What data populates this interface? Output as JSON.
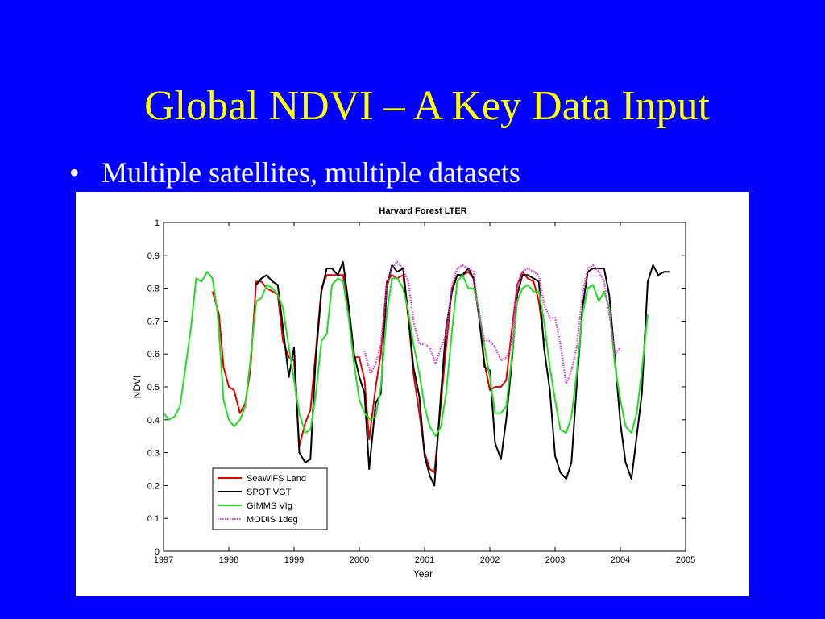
{
  "slide": {
    "title": "Global NDVI – A Key Data Input",
    "bullet": "Multiple satellites, multiple datasets"
  },
  "chart_data": {
    "type": "line",
    "title": "Harvard Forest LTER",
    "xlabel": "Year",
    "ylabel": "NDVI",
    "xlim": [
      1997,
      2005
    ],
    "ylim": [
      0,
      1
    ],
    "xticks": [
      1997,
      1998,
      1999,
      2000,
      2001,
      2002,
      2003,
      2004,
      2005
    ],
    "yticks": [
      0,
      0.1,
      0.2,
      0.3,
      0.4,
      0.5,
      0.6,
      0.7,
      0.8,
      0.9,
      1
    ],
    "grid": false,
    "legend_position": "bottom-left",
    "series": [
      {
        "name": "SeaWiFS Land",
        "color": "#e00000",
        "style": "solid",
        "x": [
          1997.75,
          1997.85,
          1997.92,
          1998.0,
          1998.08,
          1998.17,
          1998.25,
          1998.33,
          1998.42,
          1998.5,
          1998.58,
          1998.67,
          1998.75,
          1998.83,
          1998.92,
          1999.0,
          1999.08,
          1999.17,
          1999.25,
          1999.33,
          1999.42,
          1999.5,
          1999.58,
          1999.67,
          1999.75,
          1999.83,
          1999.92,
          2000.0,
          2000.08,
          2000.15,
          2000.25,
          2000.33,
          2000.42,
          2000.5,
          2000.58,
          2000.67,
          2000.75,
          2000.83,
          2000.92,
          2001.0,
          2001.08,
          2001.15,
          2001.25,
          2001.33,
          2001.42,
          2001.5,
          2001.58,
          2001.67,
          2001.75,
          2001.83,
          2001.92,
          2002.0,
          2002.08,
          2002.17,
          2002.25,
          2002.33,
          2002.42,
          2002.5,
          2002.58,
          2002.67,
          2002.75,
          2002.83
        ],
        "y": [
          0.79,
          0.72,
          0.56,
          0.5,
          0.49,
          0.42,
          0.45,
          0.55,
          0.82,
          0.82,
          0.8,
          0.79,
          0.78,
          0.64,
          0.59,
          0.58,
          0.32,
          0.39,
          0.43,
          0.6,
          0.8,
          0.84,
          0.84,
          0.84,
          0.84,
          0.73,
          0.59,
          0.59,
          0.52,
          0.34,
          0.5,
          0.6,
          0.82,
          0.84,
          0.83,
          0.84,
          0.71,
          0.54,
          0.42,
          0.3,
          0.25,
          0.24,
          0.45,
          0.62,
          0.8,
          0.84,
          0.84,
          0.85,
          0.83,
          0.72,
          0.57,
          0.49,
          0.5,
          0.5,
          0.52,
          0.66,
          0.81,
          0.85,
          0.83,
          0.82,
          0.76,
          0.64
        ]
      },
      {
        "name": "SPOT VGT",
        "color": "#000000",
        "style": "solid",
        "x": [
          1998.42,
          1998.5,
          1998.58,
          1998.67,
          1998.75,
          1998.83,
          1998.92,
          1999.0,
          1999.08,
          1999.17,
          1999.25,
          1999.33,
          1999.42,
          1999.5,
          1999.58,
          1999.67,
          1999.75,
          1999.83,
          1999.92,
          2000.0,
          2000.08,
          2000.15,
          2000.25,
          2000.33,
          2000.42,
          2000.5,
          2000.58,
          2000.67,
          2000.75,
          2000.83,
          2000.92,
          2001.0,
          2001.08,
          2001.15,
          2001.25,
          2001.33,
          2001.42,
          2001.5,
          2001.58,
          2001.67,
          2001.75,
          2001.83,
          2001.92,
          2002.0,
          2002.08,
          2002.17,
          2002.25,
          2002.33,
          2002.42,
          2002.5,
          2002.58,
          2002.67,
          2002.75,
          2002.83,
          2002.92,
          2003.0,
          2003.08,
          2003.17,
          2003.25,
          2003.33,
          2003.42,
          2003.5,
          2003.58,
          2003.67,
          2003.75,
          2003.83,
          2003.92,
          2004.0,
          2004.08,
          2004.17,
          2004.25,
          2004.33,
          2004.42,
          2004.5,
          2004.58,
          2004.67,
          2004.75
        ],
        "y": [
          0.81,
          0.83,
          0.84,
          0.82,
          0.81,
          0.68,
          0.53,
          0.62,
          0.3,
          0.27,
          0.28,
          0.58,
          0.79,
          0.86,
          0.86,
          0.84,
          0.88,
          0.76,
          0.6,
          0.53,
          0.48,
          0.25,
          0.45,
          0.48,
          0.8,
          0.87,
          0.85,
          0.86,
          0.72,
          0.56,
          0.47,
          0.29,
          0.23,
          0.2,
          0.48,
          0.68,
          0.79,
          0.84,
          0.84,
          0.86,
          0.83,
          0.72,
          0.56,
          0.55,
          0.33,
          0.28,
          0.4,
          0.56,
          0.78,
          0.84,
          0.84,
          0.83,
          0.82,
          0.62,
          0.49,
          0.29,
          0.24,
          0.22,
          0.27,
          0.5,
          0.74,
          0.85,
          0.86,
          0.86,
          0.86,
          0.78,
          0.58,
          0.39,
          0.27,
          0.22,
          0.35,
          0.48,
          0.82,
          0.87,
          0.84,
          0.85,
          0.85
        ]
      },
      {
        "name": "GIMMS VIg",
        "color": "#22dd22",
        "style": "solid",
        "x": [
          1997.0,
          1997.08,
          1997.17,
          1997.25,
          1997.33,
          1997.42,
          1997.5,
          1997.58,
          1997.67,
          1997.75,
          1997.83,
          1997.92,
          1998.0,
          1998.08,
          1998.17,
          1998.25,
          1998.33,
          1998.42,
          1998.5,
          1998.58,
          1998.67,
          1998.75,
          1998.83,
          1998.92,
          1999.0,
          1999.08,
          1999.17,
          1999.25,
          1999.33,
          1999.42,
          1999.5,
          1999.58,
          1999.67,
          1999.75,
          1999.83,
          1999.92,
          2000.0,
          2000.08,
          2000.17,
          2000.25,
          2000.33,
          2000.42,
          2000.5,
          2000.58,
          2000.67,
          2000.75,
          2000.83,
          2000.92,
          2001.0,
          2001.08,
          2001.17,
          2001.25,
          2001.33,
          2001.42,
          2001.5,
          2001.58,
          2001.67,
          2001.75,
          2001.83,
          2001.92,
          2002.0,
          2002.08,
          2002.17,
          2002.25,
          2002.33,
          2002.42,
          2002.5,
          2002.58,
          2002.67,
          2002.75,
          2002.83,
          2002.92,
          2003.0,
          2003.08,
          2003.17,
          2003.25,
          2003.33,
          2003.42,
          2003.5,
          2003.58,
          2003.67,
          2003.75,
          2003.83,
          2003.92,
          2004.0,
          2004.08,
          2004.17,
          2004.25,
          2004.33,
          2004.42
        ],
        "y": [
          0.42,
          0.4,
          0.41,
          0.44,
          0.55,
          0.68,
          0.83,
          0.82,
          0.85,
          0.83,
          0.72,
          0.46,
          0.4,
          0.38,
          0.4,
          0.44,
          0.58,
          0.76,
          0.77,
          0.81,
          0.8,
          0.78,
          0.74,
          0.62,
          0.52,
          0.42,
          0.36,
          0.37,
          0.47,
          0.64,
          0.66,
          0.81,
          0.83,
          0.82,
          0.72,
          0.57,
          0.46,
          0.42,
          0.4,
          0.41,
          0.5,
          0.72,
          0.83,
          0.83,
          0.8,
          0.73,
          0.63,
          0.54,
          0.44,
          0.38,
          0.35,
          0.38,
          0.48,
          0.67,
          0.82,
          0.84,
          0.8,
          0.8,
          0.74,
          0.62,
          0.53,
          0.42,
          0.42,
          0.44,
          0.58,
          0.76,
          0.8,
          0.81,
          0.79,
          0.79,
          0.7,
          0.56,
          0.46,
          0.37,
          0.36,
          0.41,
          0.54,
          0.72,
          0.8,
          0.81,
          0.76,
          0.79,
          0.74,
          0.56,
          0.46,
          0.38,
          0.36,
          0.42,
          0.55,
          0.72
        ]
      },
      {
        "name": "MODIS 1deg",
        "color": "#dd33dd",
        "style": "dotted",
        "x": [
          2000.08,
          2000.17,
          2000.25,
          2000.33,
          2000.42,
          2000.5,
          2000.58,
          2000.67,
          2000.75,
          2000.83,
          2000.92,
          2001.0,
          2001.08,
          2001.17,
          2001.25,
          2001.33,
          2001.42,
          2001.5,
          2001.58,
          2001.67,
          2001.75,
          2001.83,
          2001.92,
          2002.0,
          2002.08,
          2002.17,
          2002.25,
          2002.33,
          2002.42,
          2002.5,
          2002.58,
          2002.67,
          2002.75,
          2002.83,
          2002.92,
          2003.0,
          2003.08,
          2003.17,
          2003.25,
          2003.33,
          2003.42,
          2003.5,
          2003.58,
          2003.67,
          2003.75,
          2003.83,
          2003.92,
          2004.0
        ],
        "y": [
          0.61,
          0.54,
          0.57,
          0.63,
          0.8,
          0.86,
          0.88,
          0.86,
          0.82,
          0.7,
          0.63,
          0.63,
          0.62,
          0.57,
          0.62,
          0.66,
          0.81,
          0.86,
          0.87,
          0.86,
          0.85,
          0.72,
          0.64,
          0.64,
          0.62,
          0.58,
          0.59,
          0.62,
          0.8,
          0.85,
          0.86,
          0.85,
          0.84,
          0.75,
          0.71,
          0.71,
          0.63,
          0.51,
          0.55,
          0.62,
          0.78,
          0.86,
          0.87,
          0.85,
          0.82,
          0.72,
          0.6,
          0.62
        ]
      }
    ]
  }
}
